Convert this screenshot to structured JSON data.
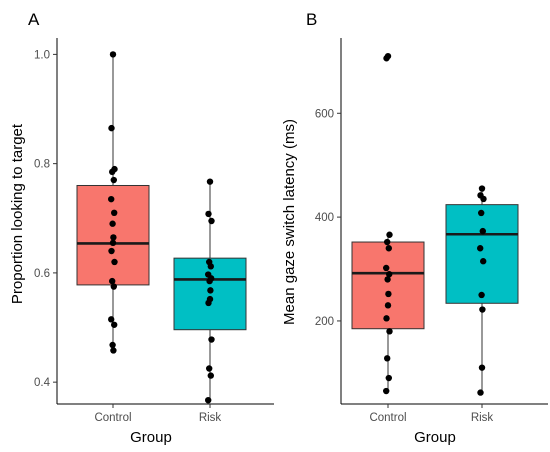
{
  "chart_data": [
    {
      "type": "box",
      "panel_label": "A",
      "xlabel": "Group",
      "ylabel": "Proportion looking to target",
      "categories": [
        "Control",
        "Risk"
      ],
      "ylim": [
        0.36,
        1.03
      ],
      "yticks": [
        0.4,
        0.6,
        0.8,
        1.0
      ],
      "ytick_labels": [
        "0.4",
        "0.6",
        "0.8",
        "1.0"
      ],
      "grid": false,
      "legend": "none",
      "colors": [
        "#f8766d",
        "#00bfc4"
      ],
      "boxes": [
        {
          "category": "Control",
          "whisker_low": 0.46,
          "q1": 0.578,
          "median": 0.654,
          "q3": 0.76,
          "whisker_high": 1.0
        },
        {
          "category": "Risk",
          "whisker_low": 0.367,
          "q1": 0.496,
          "median": 0.588,
          "q3": 0.627,
          "whisker_high": 0.767
        }
      ],
      "points": [
        {
          "category": "Control",
          "values": [
            1.0,
            0.865,
            0.79,
            0.785,
            0.77,
            0.735,
            0.71,
            0.69,
            0.665,
            0.655,
            0.64,
            0.62,
            0.585,
            0.575,
            0.515,
            0.505,
            0.468,
            0.458
          ]
        },
        {
          "category": "Risk",
          "values": [
            0.767,
            0.708,
            0.695,
            0.62,
            0.612,
            0.597,
            0.59,
            0.585,
            0.568,
            0.552,
            0.545,
            0.478,
            0.425,
            0.412,
            0.367
          ]
        }
      ]
    },
    {
      "type": "box",
      "panel_label": "B",
      "xlabel": "Group",
      "ylabel": "Mean gaze switch latency (ms)",
      "categories": [
        "Control",
        "Risk"
      ],
      "ylim": [
        40,
        745
      ],
      "yticks": [
        200,
        400,
        600
      ],
      "ytick_labels": [
        "200",
        "400",
        "600"
      ],
      "grid": false,
      "legend": "none",
      "colors": [
        "#f8766d",
        "#00bfc4"
      ],
      "boxes": [
        {
          "category": "Control",
          "whisker_low": 65,
          "q1": 185,
          "median": 292,
          "q3": 352,
          "whisker_high": 366
        },
        {
          "category": "Risk",
          "whisker_low": 62,
          "q1": 234,
          "median": 367,
          "q3": 424,
          "whisker_high": 455
        }
      ],
      "points": [
        {
          "category": "Control",
          "values": [
            710,
            706,
            366,
            352,
            340,
            302,
            290,
            280,
            252,
            230,
            205,
            180,
            128,
            90,
            65
          ]
        },
        {
          "category": "Risk",
          "values": [
            455,
            442,
            435,
            408,
            373,
            340,
            315,
            250,
            222,
            110,
            62
          ]
        }
      ]
    }
  ]
}
